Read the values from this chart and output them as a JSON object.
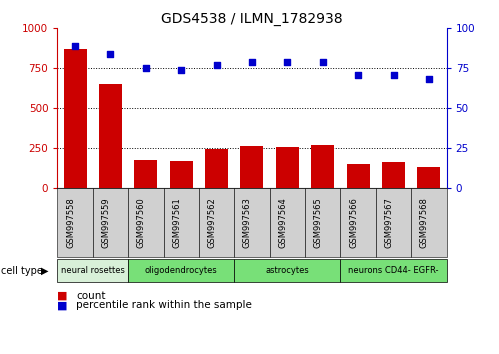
{
  "title": "GDS4538 / ILMN_1782938",
  "samples": [
    "GSM997558",
    "GSM997559",
    "GSM997560",
    "GSM997561",
    "GSM997562",
    "GSM997563",
    "GSM997564",
    "GSM997565",
    "GSM997566",
    "GSM997567",
    "GSM997568"
  ],
  "counts": [
    870,
    650,
    175,
    170,
    240,
    260,
    258,
    265,
    148,
    158,
    132
  ],
  "percentiles": [
    89,
    84,
    75,
    74,
    77,
    79,
    79,
    79,
    71,
    71,
    68
  ],
  "cell_types": [
    {
      "label": "neural rosettes",
      "start": 0,
      "end": 2,
      "color": "#d8f0d8"
    },
    {
      "label": "oligodendrocytes",
      "start": 2,
      "end": 5,
      "color": "#78e078"
    },
    {
      "label": "astrocytes",
      "start": 5,
      "end": 8,
      "color": "#78e078"
    },
    {
      "label": "neurons CD44- EGFR-",
      "start": 8,
      "end": 11,
      "color": "#78e078"
    }
  ],
  "bar_color": "#cc0000",
  "dot_color": "#0000cc",
  "left_axis_color": "#cc0000",
  "right_axis_color": "#0000cc",
  "ylim_left": [
    0,
    1000
  ],
  "ylim_right": [
    0,
    100
  ],
  "yticks_left": [
    0,
    250,
    500,
    750,
    1000
  ],
  "yticks_right": [
    0,
    25,
    50,
    75,
    100
  ],
  "gridlines": [
    250,
    500,
    750
  ],
  "legend_count_color": "#cc0000",
  "legend_pct_color": "#0000cc",
  "xtick_bg_color": "#d0d0d0"
}
